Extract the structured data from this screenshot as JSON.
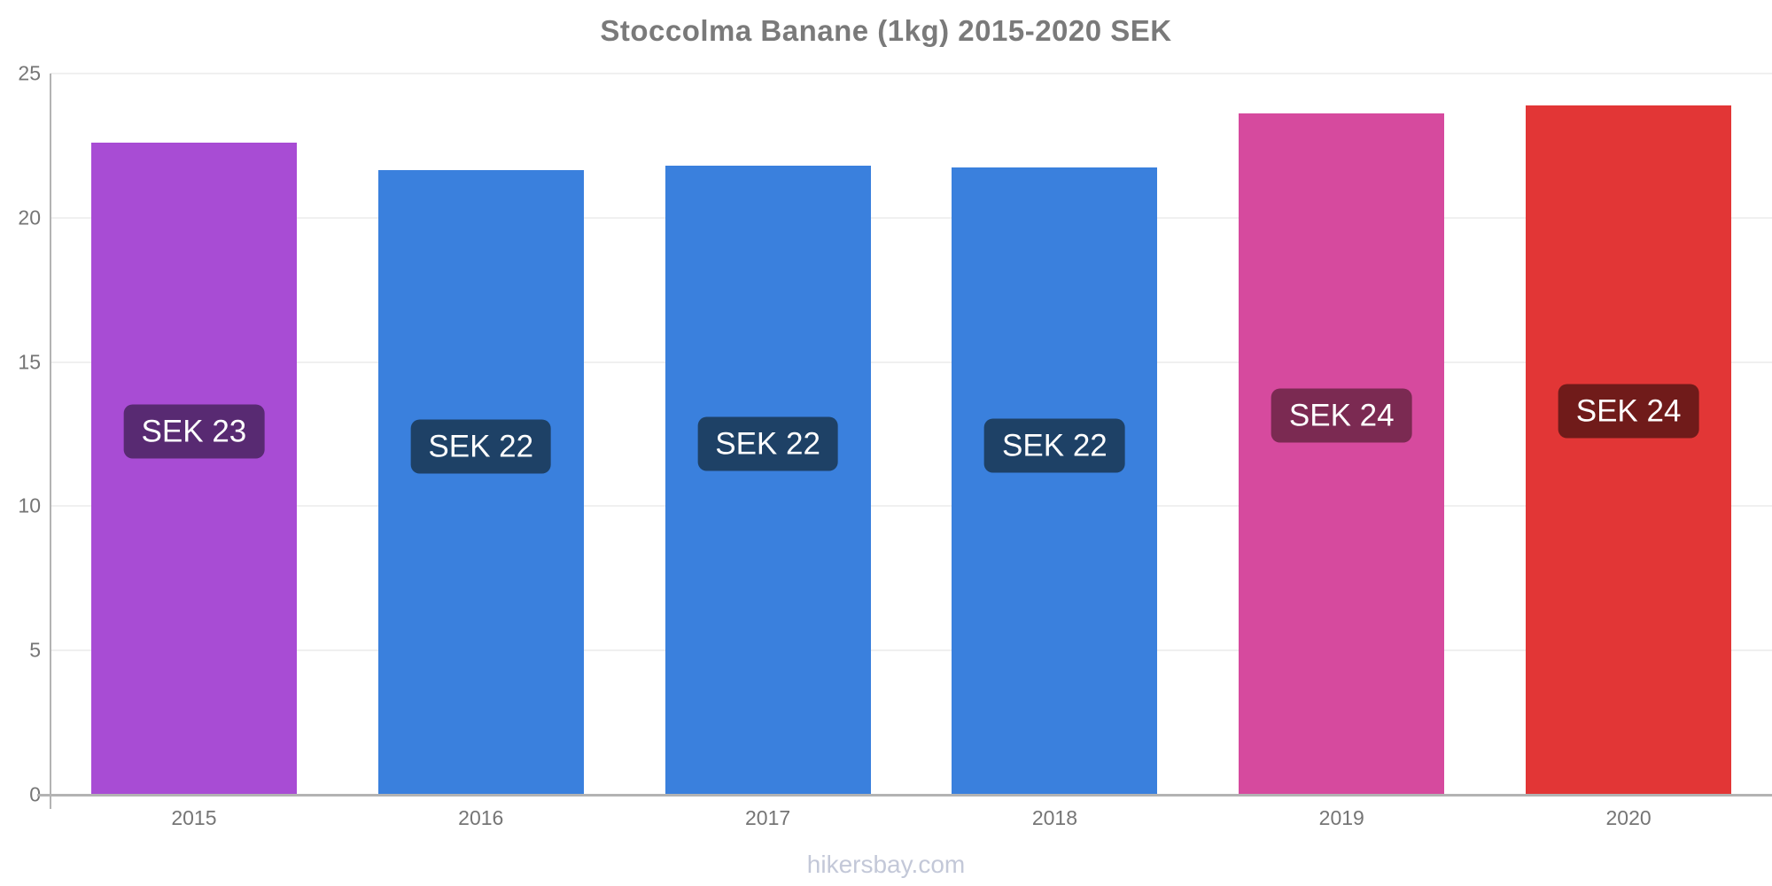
{
  "page": {
    "title": "Stoccolma Banane (1kg) 2015-2020 SEK",
    "footer_text": "hikersbay.com"
  },
  "chart_data": {
    "type": "bar",
    "title": "Stoccolma Banane (1kg) 2015-2020 SEK",
    "categories": [
      "2015",
      "2016",
      "2017",
      "2018",
      "2019",
      "2020"
    ],
    "values": [
      22.6,
      21.65,
      21.82,
      21.75,
      23.62,
      23.88
    ],
    "value_labels": [
      "SEK 23",
      "SEK 22",
      "SEK 22",
      "SEK 22",
      "SEK 24",
      "SEK 24"
    ],
    "bar_colors": [
      "#a84cd4",
      "#3a80dd",
      "#3a80dd",
      "#3a80dd",
      "#d64a9e",
      "#e23636"
    ],
    "value_label_bg_colors": [
      "#582a72",
      "#1e4166",
      "#1e4166",
      "#1e4166",
      "#7b2a52",
      "#701b1a"
    ],
    "value_label_text_color": "#ffffff",
    "xlabel": "",
    "ylabel": "",
    "ylim": [
      0,
      25
    ],
    "yticks": [
      0,
      5,
      10,
      15,
      20,
      25
    ],
    "grid": "horizontal",
    "legend": "none",
    "axis_color": "#b3b3b3",
    "grid_color": "#f0f0f0",
    "tick_label_color": "#757575",
    "title_color": "#7a7a7a",
    "watermark": "hikersbay.com"
  }
}
